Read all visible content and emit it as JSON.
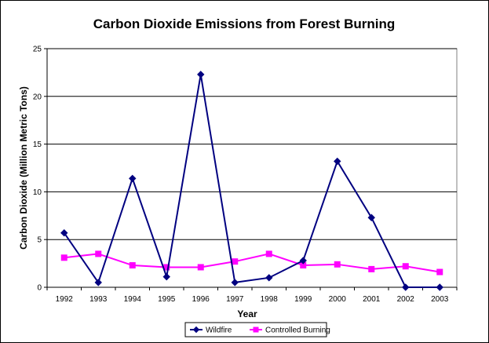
{
  "chart_data": {
    "type": "line",
    "title": "Carbon Dioxide Emissions from Forest Burning",
    "xlabel": "Year",
    "ylabel": "Carbon Dioxide (Million Metric Tons)",
    "categories": [
      "1992",
      "1993",
      "1994",
      "1995",
      "1996",
      "1997",
      "1998",
      "1999",
      "2000",
      "2001",
      "2002",
      "2003"
    ],
    "ylim": [
      0,
      25
    ],
    "yticks": [
      0,
      5,
      10,
      15,
      20,
      25
    ],
    "grid": true,
    "legend_position": "bottom",
    "series": [
      {
        "name": "Wildfire",
        "color": "#000080",
        "marker": "diamond",
        "values": [
          5.7,
          0.5,
          11.4,
          1.1,
          22.3,
          0.5,
          1.0,
          2.8,
          13.2,
          7.3,
          0.0,
          0.0
        ]
      },
      {
        "name": "Controlled Burning",
        "color": "#ff00ff",
        "marker": "square",
        "values": [
          3.1,
          3.5,
          2.3,
          2.1,
          2.1,
          2.7,
          3.5,
          2.3,
          2.4,
          1.9,
          2.2,
          1.6
        ]
      }
    ]
  }
}
